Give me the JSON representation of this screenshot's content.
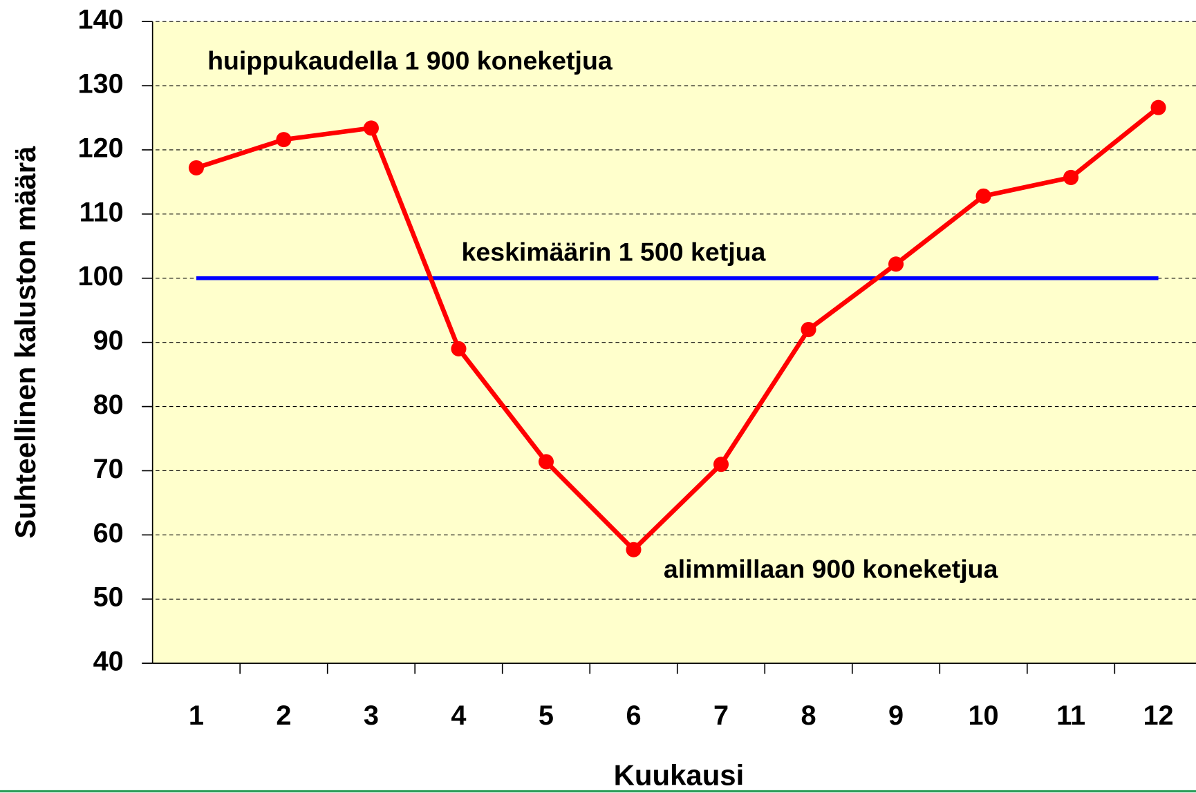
{
  "chart_data": {
    "type": "line",
    "x_label": "Kuukausi",
    "y_label": "Suhteellinen kaluston määrä",
    "annotations": [
      "huippukaudella 1 900 koneketjua",
      "keskimäärin 1 500 ketjua",
      "alimmillaan 900 koneketjua"
    ],
    "categories": [
      "1",
      "2",
      "3",
      "4",
      "5",
      "6",
      "7",
      "8",
      "9",
      "10",
      "11",
      "12"
    ],
    "series": [
      {
        "color": "#ff0000",
        "markers": true,
        "values": [
          117.2,
          121.6,
          123.4,
          89,
          71.4,
          57.7,
          71,
          92,
          102.2,
          112.8,
          115.7,
          126.6
        ]
      },
      {
        "color": "#0000ff",
        "markers": false,
        "values": [
          100,
          100,
          100,
          100,
          100,
          100,
          100,
          100,
          100,
          100,
          100,
          100
        ]
      }
    ],
    "ylim": [
      40,
      140
    ],
    "yticks": [
      40,
      50,
      60,
      70,
      80,
      90,
      100,
      110,
      120,
      130,
      140
    ],
    "grid": true,
    "plot_background": "#ffffcc"
  }
}
